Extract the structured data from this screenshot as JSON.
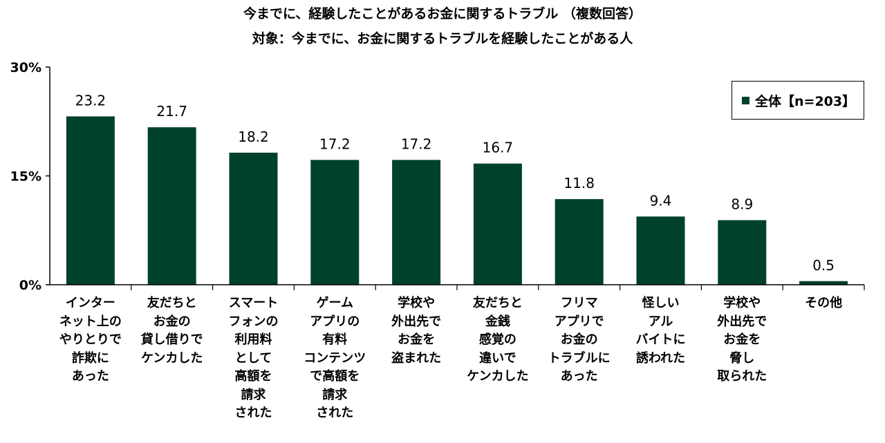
{
  "titles": {
    "line1": "今までに、経験したことがあるお金に関するトラブル （複数回答）",
    "line2": "対象：今までに、お金に関するトラブルを経験したことがある人"
  },
  "colors": {
    "bar": "#00412e",
    "axis": "#000000"
  },
  "chart_data": {
    "type": "bar",
    "title": "今までに、経験したことがあるお金に関するトラブル （複数回答）",
    "subtitle": "対象：今までに、お金に関するトラブルを経験したことがある人",
    "categories": [
      "インター\nネット上の\nやりとりで\n詐欺に\nあった",
      "友だちと\nお金の\n貸し借りで\nケンカした",
      "スマート\nフォンの\n利用料\nとして\n高額を\n請求\nされた",
      "ゲーム\nアプリの\n有料\nコンテンツ\nで高額を\n請求\nされた",
      "学校や\n外出先で\nお金を\n盗まれた",
      "友だちと\n金銭\n感覚の\n違いで\nケンカした",
      "フリマ\nアプリで\nお金の\nトラブルに\nあった",
      "怪しい\nアル\nバイトに\n誘われた",
      "学校や\n外出先で\nお金を\n脅し\n取られた",
      "その他"
    ],
    "series": [
      {
        "name": "全体【n=203】",
        "values": [
          23.2,
          21.7,
          18.2,
          17.2,
          17.2,
          16.7,
          11.8,
          9.4,
          8.9,
          0.5
        ],
        "labels": [
          "23.2",
          "21.7",
          "18.2",
          "17.2",
          "17.2",
          "16.7",
          "11.8",
          "9.4",
          "8.9",
          "0.5"
        ]
      }
    ],
    "ylim": [
      0,
      30
    ],
    "yticks": [
      0,
      15,
      30
    ],
    "ytick_labels": [
      "0%",
      "15%",
      "30%"
    ],
    "grid": false,
    "legend_position": "top-right"
  }
}
